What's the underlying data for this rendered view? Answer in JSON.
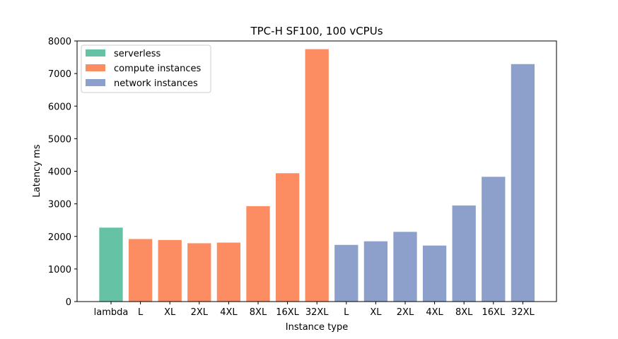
{
  "chart_data": {
    "type": "bar",
    "title": "TPC-H SF100, 100 vCPUs",
    "xlabel": "Instance type",
    "ylabel": "Latency ms",
    "ylim": [
      0,
      8000
    ],
    "yticks": [
      0,
      1000,
      2000,
      3000,
      4000,
      5000,
      6000,
      7000,
      8000
    ],
    "categories": [
      "lambda",
      "L",
      "XL",
      "2XL",
      "4XL",
      "8XL",
      "16XL",
      "32XL",
      "L",
      "XL",
      "2XL",
      "4XL",
      "8XL",
      "16XL",
      "32XL"
    ],
    "values": [
      2270,
      1920,
      1890,
      1790,
      1810,
      2930,
      3940,
      7750,
      1740,
      1850,
      2140,
      1720,
      2950,
      3830,
      7290
    ],
    "groups": [
      0,
      1,
      1,
      1,
      1,
      1,
      1,
      1,
      2,
      2,
      2,
      2,
      2,
      2,
      2
    ],
    "series": [
      {
        "name": "serverless",
        "color": "#66c2a5"
      },
      {
        "name": "compute instances",
        "color": "#fc8d62"
      },
      {
        "name": "network instances",
        "color": "#8da0cb"
      }
    ],
    "legend_position": "top-left",
    "grid": false
  }
}
